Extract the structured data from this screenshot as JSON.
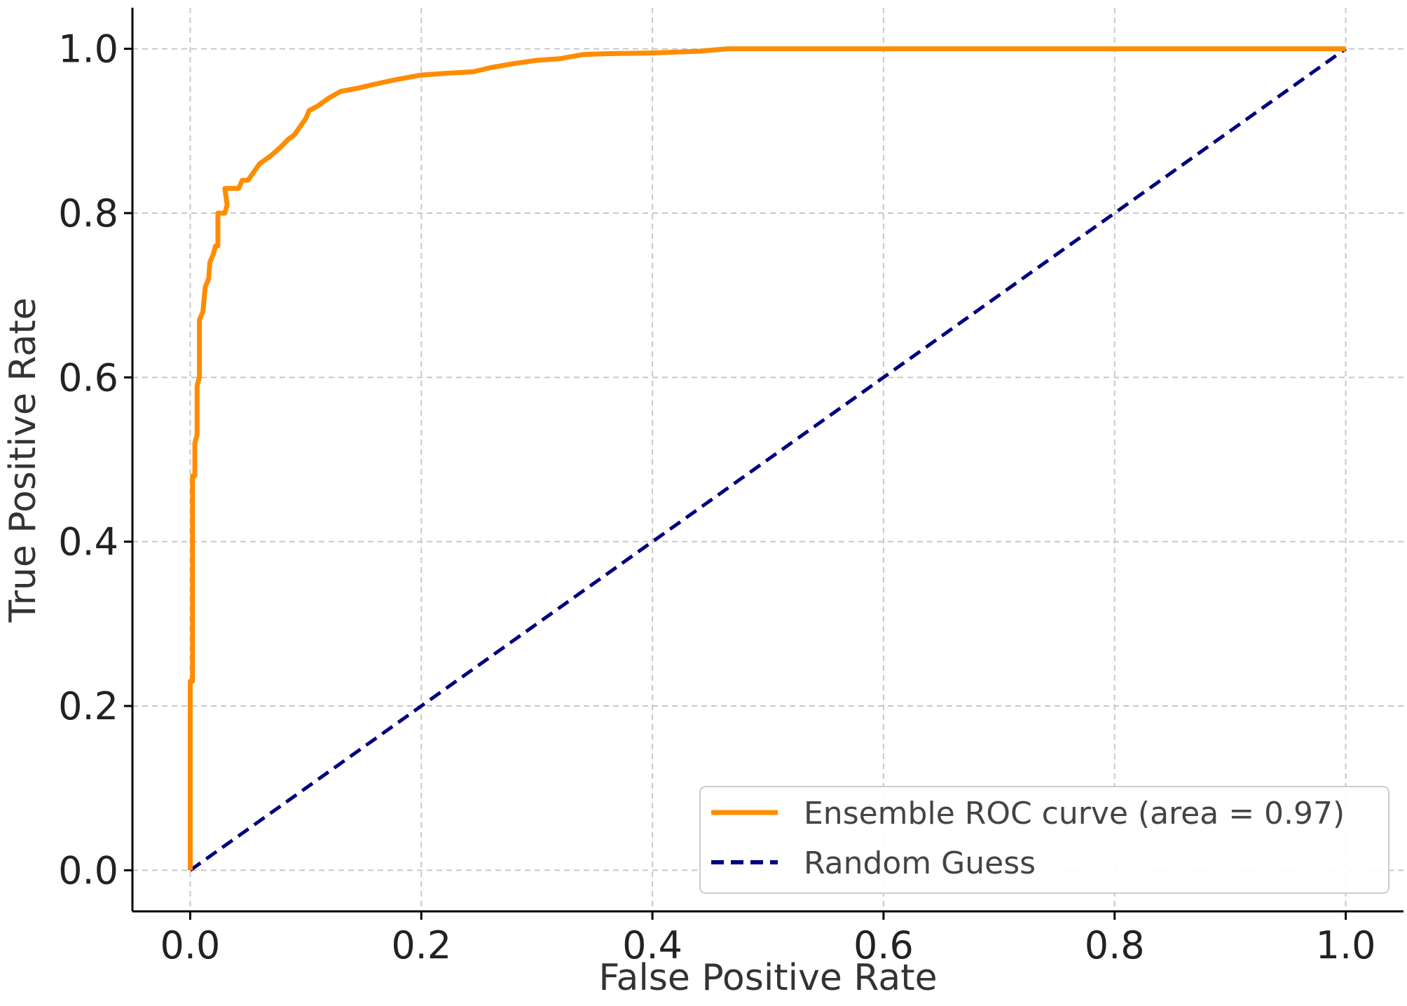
{
  "chart_data": {
    "type": "line",
    "title": "",
    "xlabel": "False Positive Rate",
    "ylabel": "True Positive Rate",
    "xlim": [
      -0.05,
      1.05
    ],
    "ylim": [
      -0.05,
      1.05
    ],
    "grid": true,
    "legend_position": "bottom-right",
    "x_ticks": [
      0.0,
      0.2,
      0.4,
      0.6,
      0.8,
      1.0
    ],
    "y_ticks": [
      0.0,
      0.2,
      0.4,
      0.6,
      0.8,
      1.0
    ],
    "x_tick_labels": [
      "0.0",
      "0.2",
      "0.4",
      "0.6",
      "0.8",
      "1.0"
    ],
    "y_tick_labels": [
      "0.0",
      "0.2",
      "0.4",
      "0.6",
      "0.8",
      "1.0"
    ],
    "series": [
      {
        "name": "Ensemble ROC curve (area = 0.97)",
        "color": "#ff8c00",
        "style": "solid",
        "points": [
          [
            0.0,
            0.0
          ],
          [
            0.0,
            0.23
          ],
          [
            0.002,
            0.23
          ],
          [
            0.002,
            0.48
          ],
          [
            0.004,
            0.48
          ],
          [
            0.004,
            0.52
          ],
          [
            0.006,
            0.53
          ],
          [
            0.006,
            0.59
          ],
          [
            0.008,
            0.6
          ],
          [
            0.008,
            0.67
          ],
          [
            0.011,
            0.68
          ],
          [
            0.013,
            0.71
          ],
          [
            0.016,
            0.72
          ],
          [
            0.017,
            0.74
          ],
          [
            0.02,
            0.75
          ],
          [
            0.022,
            0.76
          ],
          [
            0.024,
            0.76
          ],
          [
            0.024,
            0.8
          ],
          [
            0.03,
            0.8
          ],
          [
            0.032,
            0.81
          ],
          [
            0.03,
            0.83
          ],
          [
            0.042,
            0.83
          ],
          [
            0.045,
            0.84
          ],
          [
            0.05,
            0.84
          ],
          [
            0.055,
            0.85
          ],
          [
            0.06,
            0.86
          ],
          [
            0.065,
            0.865
          ],
          [
            0.07,
            0.87
          ],
          [
            0.078,
            0.88
          ],
          [
            0.085,
            0.89
          ],
          [
            0.09,
            0.895
          ],
          [
            0.095,
            0.905
          ],
          [
            0.1,
            0.915
          ],
          [
            0.103,
            0.925
          ],
          [
            0.11,
            0.93
          ],
          [
            0.12,
            0.94
          ],
          [
            0.13,
            0.948
          ],
          [
            0.145,
            0.952
          ],
          [
            0.16,
            0.957
          ],
          [
            0.18,
            0.963
          ],
          [
            0.2,
            0.968
          ],
          [
            0.22,
            0.97
          ],
          [
            0.245,
            0.972
          ],
          [
            0.26,
            0.977
          ],
          [
            0.28,
            0.982
          ],
          [
            0.3,
            0.986
          ],
          [
            0.32,
            0.988
          ],
          [
            0.34,
            0.993
          ],
          [
            0.36,
            0.994
          ],
          [
            0.4,
            0.995
          ],
          [
            0.44,
            0.997
          ],
          [
            0.465,
            1.0
          ],
          [
            0.5,
            1.0
          ],
          [
            1.0,
            1.0
          ]
        ]
      },
      {
        "name": "Random Guess",
        "color": "#000080",
        "style": "dashed",
        "points": [
          [
            0.0,
            0.0
          ],
          [
            1.0,
            1.0
          ]
        ]
      }
    ]
  }
}
